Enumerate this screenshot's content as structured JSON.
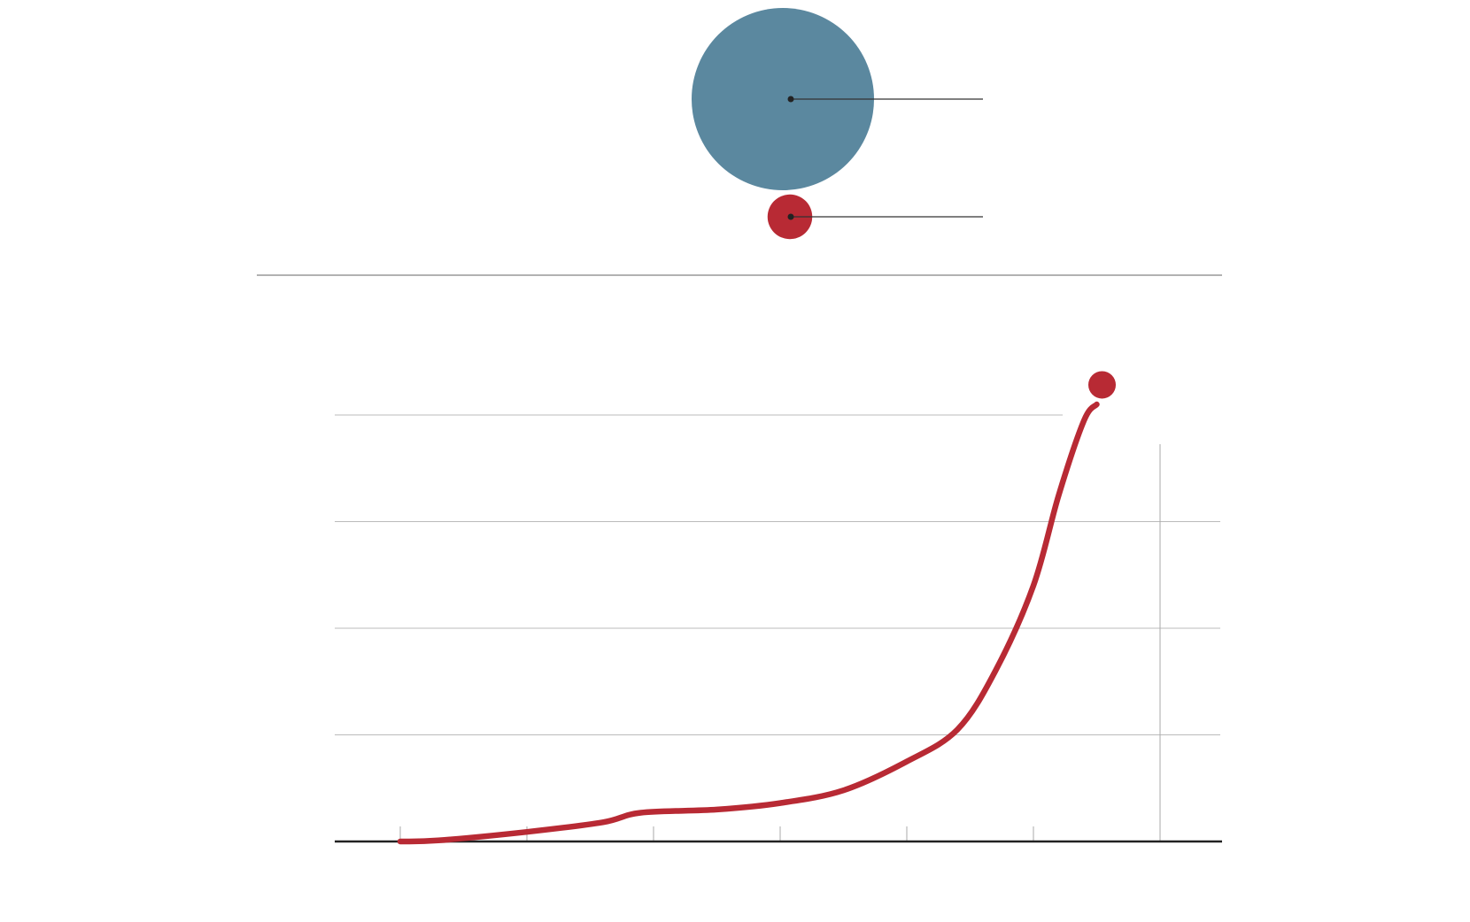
{
  "colors": {
    "large_bubble": "#5b889f",
    "small_bubble": "#b82a34",
    "line": "#b82a34",
    "gridline": "#bbbbbb",
    "axis": "#222222",
    "divider": "#999999",
    "leader": "#333333"
  },
  "chart_data": [
    {
      "type": "bubble",
      "bubbles": [
        {
          "relative_size": 1.0,
          "color": "#5b889f"
        },
        {
          "relative_size": 0.06,
          "color": "#b82a34"
        }
      ]
    },
    {
      "type": "line",
      "series": [
        {
          "color": "#b82a34",
          "x": [
            0,
            0.3,
            1.0,
            1.6,
            1.9,
            2.5,
            3.0,
            3.5,
            4.0,
            4.4,
            4.7,
            5.0,
            5.2,
            5.4,
            5.5
          ],
          "values": [
            0.0,
            0.01,
            0.09,
            0.18,
            0.27,
            0.3,
            0.36,
            0.48,
            0.75,
            1.05,
            1.6,
            2.4,
            3.25,
            3.95,
            4.1
          ]
        }
      ],
      "xlim": [
        -0.5,
        6.5
      ],
      "ylim": [
        0,
        4.0
      ],
      "y_gridlines": [
        1,
        2,
        3,
        4
      ],
      "x_ticks": [
        0,
        1,
        2,
        3,
        4,
        5,
        6
      ],
      "end_marker": true,
      "grid": true
    }
  ]
}
